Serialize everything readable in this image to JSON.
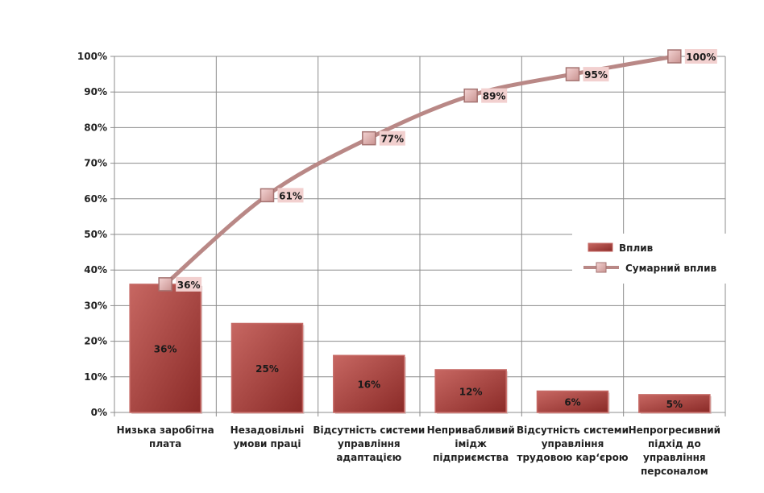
{
  "chart_data": {
    "type": "bar",
    "categories": [
      [
        "Низька заробітна",
        "плата"
      ],
      [
        "Незадовільні",
        "умови праці"
      ],
      [
        "Відсутність системи",
        "управління",
        "адаптацією"
      ],
      [
        "Непривабливий",
        "імідж",
        "підприємства"
      ],
      [
        "Відсутність системи",
        "управління",
        "трудовою кар‘єрою"
      ],
      [
        "Непрогресивний",
        "підхід до",
        "управління",
        "персоналом"
      ]
    ],
    "series": [
      {
        "name": "Вплив",
        "type": "bar",
        "values": [
          36,
          25,
          16,
          12,
          6,
          5
        ],
        "labels": [
          "36%",
          "25%",
          "16%",
          "12%",
          "6%",
          "5%"
        ]
      },
      {
        "name": "Сумарний вплив",
        "type": "line",
        "values": [
          36,
          61,
          77,
          89,
          95,
          100
        ],
        "labels": [
          "36%",
          "61%",
          "77%",
          "89%",
          "95%",
          "100%"
        ]
      }
    ],
    "yticks": [
      "0%",
      "10%",
      "20%",
      "30%",
      "40%",
      "50%",
      "60%",
      "70%",
      "80%",
      "90%",
      "100%"
    ],
    "ylim": [
      0,
      100
    ],
    "grid": true,
    "legend_position": "right",
    "colors": {
      "bar": "#9c3a36",
      "bar_light": "#c25e58",
      "line": "#b98886",
      "marker": "#e2b4b2",
      "label_bg": "#f2d0cf"
    }
  }
}
